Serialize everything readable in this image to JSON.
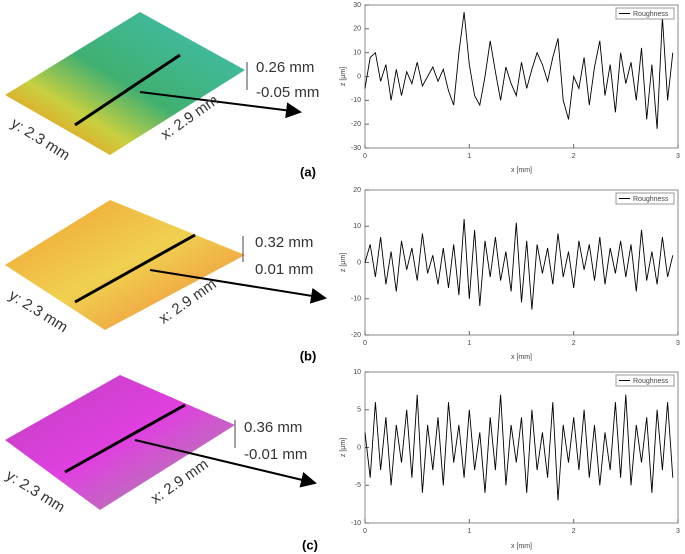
{
  "chart_data": [
    {
      "type": "line",
      "xlabel": "x [mm]",
      "ylabel": "z [µm]",
      "xlim": [
        0,
        3
      ],
      "xticks": [
        0,
        1,
        2,
        3
      ],
      "ylim": [
        -30,
        30
      ],
      "yticks": [
        -30,
        -20,
        -10,
        0,
        10,
        20,
        30
      ],
      "annotations": [
        "y: 2.3 mm",
        "x: 2.9 mm",
        "0.26 mm",
        "-0.05 mm",
        "(a)"
      ],
      "x": [
        0,
        0.05,
        0.1,
        0.15,
        0.2,
        0.25,
        0.3,
        0.35,
        0.4,
        0.45,
        0.5,
        0.55,
        0.6,
        0.65,
        0.7,
        0.75,
        0.8,
        0.85,
        0.9,
        0.95,
        1,
        1.05,
        1.1,
        1.15,
        1.2,
        1.25,
        1.3,
        1.35,
        1.4,
        1.45,
        1.5,
        1.55,
        1.6,
        1.65,
        1.7,
        1.75,
        1.8,
        1.85,
        1.9,
        1.95,
        2,
        2.05,
        2.1,
        2.15,
        2.2,
        2.25,
        2.3,
        2.35,
        2.4,
        2.45,
        2.5,
        2.55,
        2.6,
        2.65,
        2.7,
        2.75,
        2.8,
        2.85,
        2.9,
        2.95
      ],
      "series": [
        {
          "name": "Roughness",
          "color": "#000000",
          "values": [
            -5,
            8,
            10,
            -2,
            5,
            -10,
            3,
            -8,
            2,
            -3,
            6,
            -4,
            0,
            4,
            -2,
            3,
            -6,
            -12,
            10,
            27,
            5,
            -8,
            -12,
            0,
            15,
            2,
            -10,
            4,
            -3,
            -8,
            6,
            -5,
            3,
            10,
            5,
            -2,
            8,
            16,
            -10,
            -18,
            0,
            -5,
            8,
            -12,
            4,
            15,
            -8,
            5,
            -15,
            10,
            -3,
            6,
            -10,
            12,
            -18,
            5,
            -22,
            25,
            -10,
            10
          ]
        }
      ]
    },
    {
      "type": "line",
      "xlabel": "x [mm]",
      "ylabel": "z [µm]",
      "xlim": [
        0,
        3
      ],
      "xticks": [
        0,
        1,
        2,
        3
      ],
      "ylim": [
        -20,
        20
      ],
      "yticks": [
        -20,
        -10,
        0,
        10,
        20
      ],
      "annotations": [
        "y: 2.3 mm",
        "x: 2.9 mm",
        "0.32 mm",
        "0.01 mm",
        "(b)"
      ],
      "x": [
        0,
        0.05,
        0.1,
        0.15,
        0.2,
        0.25,
        0.3,
        0.35,
        0.4,
        0.45,
        0.5,
        0.55,
        0.6,
        0.65,
        0.7,
        0.75,
        0.8,
        0.85,
        0.9,
        0.95,
        1,
        1.05,
        1.1,
        1.15,
        1.2,
        1.25,
        1.3,
        1.35,
        1.4,
        1.45,
        1.5,
        1.55,
        1.6,
        1.65,
        1.7,
        1.75,
        1.8,
        1.85,
        1.9,
        1.95,
        2,
        2.05,
        2.1,
        2.15,
        2.2,
        2.25,
        2.3,
        2.35,
        2.4,
        2.45,
        2.5,
        2.55,
        2.6,
        2.65,
        2.7,
        2.75,
        2.8,
        2.85,
        2.9,
        2.95
      ],
      "series": [
        {
          "name": "Roughness",
          "color": "#000000",
          "values": [
            0,
            5,
            -4,
            7,
            -6,
            3,
            -8,
            6,
            -2,
            4,
            -5,
            8,
            -3,
            2,
            -6,
            4,
            -7,
            5,
            -9,
            12,
            -10,
            9,
            -12,
            6,
            -4,
            7,
            -5,
            3,
            -8,
            11,
            -11,
            6,
            -13,
            5,
            -3,
            4,
            -6,
            8,
            -4,
            3,
            -7,
            6,
            -2,
            5,
            -5,
            7,
            -6,
            4,
            -3,
            6,
            -4,
            5,
            -8,
            9,
            -5,
            3,
            -6,
            7,
            -4,
            2
          ]
        }
      ]
    },
    {
      "type": "line",
      "xlabel": "x [mm]",
      "ylabel": "z [µm]",
      "xlim": [
        0,
        3
      ],
      "xticks": [
        0,
        1,
        2,
        3
      ],
      "ylim": [
        -10,
        10
      ],
      "yticks": [
        -10,
        -5,
        0,
        5,
        10
      ],
      "annotations": [
        "y: 2.3 mm",
        "x: 2.9 mm",
        "0.36 mm",
        "-0.01 mm",
        "(c)"
      ],
      "x": [
        0,
        0.05,
        0.1,
        0.15,
        0.2,
        0.25,
        0.3,
        0.35,
        0.4,
        0.45,
        0.5,
        0.55,
        0.6,
        0.65,
        0.7,
        0.75,
        0.8,
        0.85,
        0.9,
        0.95,
        1,
        1.05,
        1.1,
        1.15,
        1.2,
        1.25,
        1.3,
        1.35,
        1.4,
        1.45,
        1.5,
        1.55,
        1.6,
        1.65,
        1.7,
        1.75,
        1.8,
        1.85,
        1.9,
        1.95,
        2,
        2.05,
        2.1,
        2.15,
        2.2,
        2.25,
        2.3,
        2.35,
        2.4,
        2.45,
        2.5,
        2.55,
        2.6,
        2.65,
        2.7,
        2.75,
        2.8,
        2.85,
        2.9,
        2.95
      ],
      "series": [
        {
          "name": "Roughness",
          "color": "#000000",
          "values": [
            2,
            -4,
            6,
            -3,
            4,
            -5,
            3,
            -2,
            5,
            -4,
            7,
            -6,
            3,
            -3,
            4,
            -5,
            6,
            -2,
            3,
            -4,
            5,
            -3,
            2,
            -6,
            4,
            -3,
            7,
            -5,
            3,
            -2,
            4,
            -6,
            5,
            -3,
            2,
            -4,
            6,
            -7,
            3,
            -2,
            4,
            -3,
            5,
            -4,
            3,
            -5,
            2,
            -3,
            6,
            -4,
            7,
            -5,
            3,
            -2,
            4,
            -6,
            5,
            -3,
            6,
            -4
          ]
        }
      ]
    }
  ]
}
